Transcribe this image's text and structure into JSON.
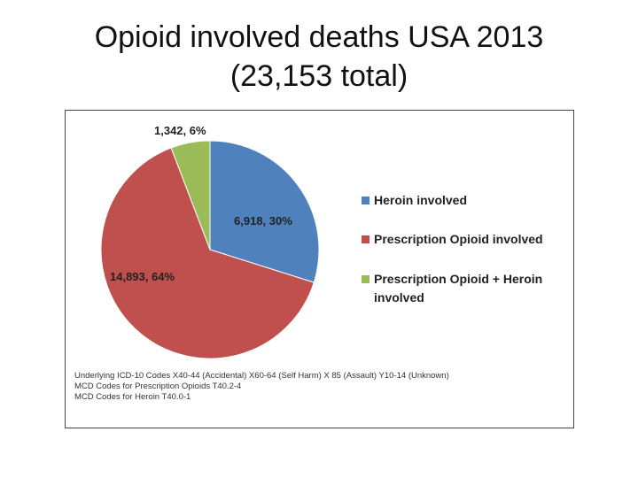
{
  "title": {
    "line1": "Opioid involved deaths USA 2013",
    "line2": "(23,153 total)"
  },
  "chart_data": {
    "type": "pie",
    "slices": [
      {
        "name": "Heroin involved",
        "value": 6918,
        "percent": 30,
        "label": "6,918, 30%",
        "color": "#4f81bd"
      },
      {
        "name": "Prescription Opioid involved",
        "value": 14893,
        "percent": 64,
        "label": "14,893, 64%",
        "color": "#c0504d"
      },
      {
        "name": "Prescription Opioid + Heroin involved",
        "value": 1342,
        "percent": 6,
        "label": "1,342, 6%",
        "color": "#9bbb59"
      }
    ],
    "legend": {
      "placement": "right",
      "entries": [
        "Heroin involved",
        "Prescription Opioid involved",
        "Prescription Opioid + Heroin",
        "involved"
      ]
    },
    "notes": [
      "Underlying ICD-10 Codes X40-44 (Accidental) X60-64 (Self Harm) X 85 (Assault) Y10-14 (Unknown)",
      "MCD Codes for Prescription Opioids T40.2-4",
      "MCD Codes for Heroin T40.0-1"
    ]
  }
}
